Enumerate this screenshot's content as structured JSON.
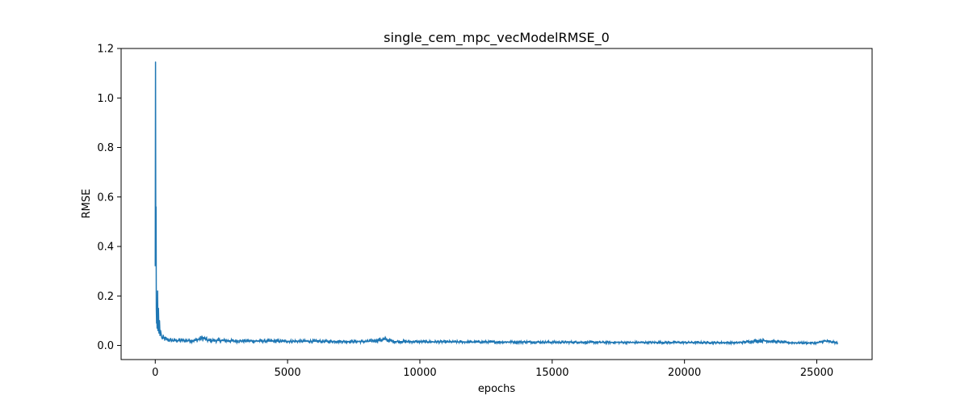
{
  "chart_data": {
    "type": "line",
    "title": "single_cem_mpc_vecModelRMSE_0",
    "xlabel": "epochs",
    "ylabel": "RMSE",
    "xlim": [
      -1290,
      27090
    ],
    "ylim": [
      -0.057,
      1.2
    ],
    "xticks": [
      0,
      5000,
      10000,
      15000,
      20000,
      25000
    ],
    "xtick_labels": [
      "0",
      "5000",
      "10000",
      "15000",
      "20000",
      "25000"
    ],
    "yticks": [
      0.0,
      0.2,
      0.4,
      0.6,
      0.8,
      1.0,
      1.2
    ],
    "ytick_labels": [
      "0.0",
      "0.2",
      "0.4",
      "0.6",
      "0.8",
      "1.0",
      "1.2"
    ],
    "grid": false,
    "series": [
      {
        "color": "#1f77b4",
        "x": [
          0,
          10,
          20,
          30,
          40,
          50,
          60,
          70,
          80,
          90,
          100,
          120,
          140,
          160,
          180,
          200,
          250,
          300,
          400,
          500,
          700,
          1000,
          1500,
          1800,
          2000,
          2500,
          3000,
          4000,
          5000,
          6000,
          7000,
          8000,
          8700,
          9000,
          10000,
          12000,
          14000,
          15000,
          16000,
          18000,
          20000,
          22000,
          22900,
          24000,
          25000,
          25300,
          25800
        ],
        "y": [
          0.32,
          1.145,
          0.41,
          0.56,
          0.15,
          0.09,
          0.12,
          0.07,
          0.1,
          0.22,
          0.06,
          0.15,
          0.05,
          0.1,
          0.04,
          0.06,
          0.03,
          0.03,
          0.025,
          0.022,
          0.02,
          0.02,
          0.02,
          0.03,
          0.02,
          0.02,
          0.018,
          0.018,
          0.017,
          0.017,
          0.016,
          0.016,
          0.025,
          0.016,
          0.015,
          0.014,
          0.014,
          0.013,
          0.013,
          0.012,
          0.012,
          0.011,
          0.02,
          0.011,
          0.01,
          0.018,
          0.01
        ]
      }
    ]
  }
}
